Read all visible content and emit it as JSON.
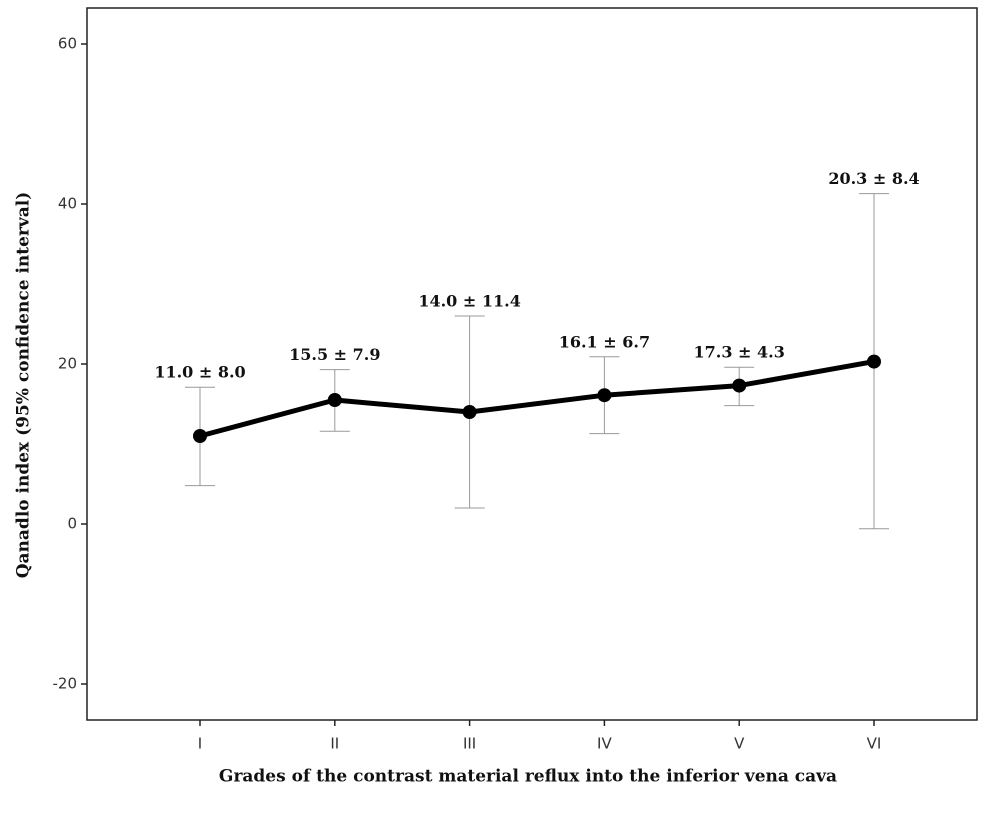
{
  "chart_data": {
    "type": "line",
    "x_label": "Grades of the contrast material reflux into the inferior vena cava",
    "y_label": "Qanadlo index (95% confidence interval)",
    "categories": [
      "I",
      "II",
      "III",
      "IV",
      "V",
      "VI"
    ],
    "values": [
      11.0,
      15.5,
      14.0,
      16.1,
      17.3,
      20.3
    ],
    "value_labels": [
      "11.0 ± 8.0",
      "15.5 ± 7.9",
      "14.0 ± 11.4",
      "16.1 ± 6.7",
      "17.3 ± 4.3",
      "20.3 ± 8.4"
    ],
    "ci_lower": [
      4.8,
      11.6,
      2.0,
      11.3,
      14.8,
      -0.6
    ],
    "ci_upper": [
      17.1,
      19.3,
      26.0,
      20.9,
      19.6,
      41.3
    ],
    "color": "#000000",
    "error_color": "#999999",
    "ylim": [
      -24.5,
      64.5
    ],
    "yticks": [
      -20,
      0,
      20,
      40,
      60
    ],
    "grid": false
  }
}
